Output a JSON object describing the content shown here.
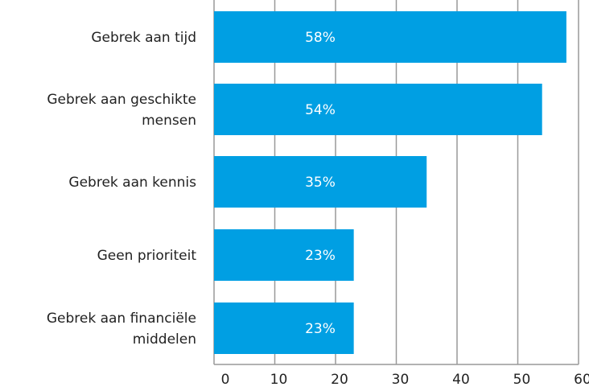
{
  "chart_data": {
    "type": "bar",
    "orientation": "horizontal",
    "categories": [
      [
        "Gebrek aan tijd"
      ],
      [
        "Gebrek aan geschikte",
        "mensen"
      ],
      [
        "Gebrek aan kennis"
      ],
      [
        "Geen prioriteit"
      ],
      [
        "Gebrek aan financiële",
        "middelen"
      ]
    ],
    "values": [
      58,
      54,
      35,
      23,
      23
    ],
    "data_labels": [
      "58%",
      "54%",
      "35%",
      "23%",
      "23%"
    ],
    "xlim": [
      0,
      60
    ],
    "xticks": [
      "0",
      "10",
      "20",
      "30",
      "40",
      "50",
      "60"
    ],
    "grid": true,
    "bar_color": "#009fe3",
    "grid_color": "#999999"
  }
}
